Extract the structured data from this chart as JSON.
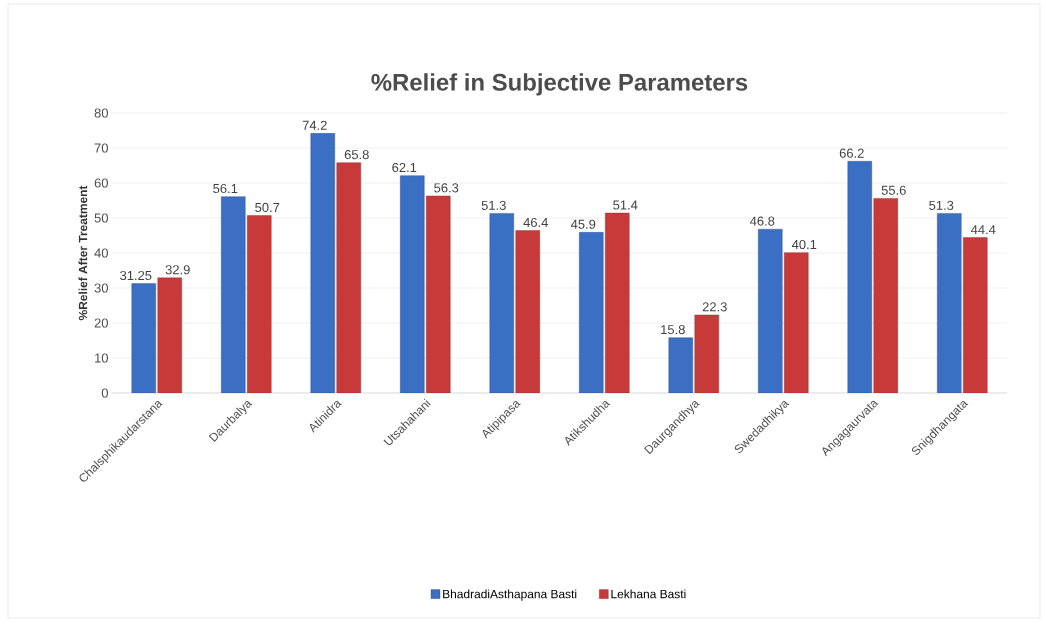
{
  "chart_data": {
    "type": "bar",
    "title": "%Relief in Subjective Parameters",
    "ylabel": "%Relief After Treatment",
    "categories": [
      "Chalsphikaudarstana",
      "Daurbalya",
      "Atinidra",
      "Utsahahani",
      "Atipipasa",
      "Atikshudha",
      "Daurgandhya",
      "Swedadhikya",
      "Angagaurvata",
      "Snigdhangata"
    ],
    "series": [
      {
        "name": "BhadradiAsthapana Basti",
        "color": "#3a6fc4",
        "values": [
          31.25,
          56.1,
          74.2,
          62.1,
          51.3,
          45.9,
          15.8,
          46.8,
          66.2,
          51.3
        ]
      },
      {
        "name": "Lekhana Basti",
        "color": "#c83a3a",
        "values": [
          32.9,
          50.7,
          65.8,
          56.3,
          46.4,
          51.4,
          22.3,
          40.1,
          55.6,
          44.4
        ]
      }
    ],
    "ylim": [
      0,
      80
    ],
    "yticks": [
      0,
      10,
      20,
      30,
      40,
      50,
      60,
      70,
      80
    ],
    "grid": "y",
    "legend": "bottom",
    "data_labels": true
  }
}
